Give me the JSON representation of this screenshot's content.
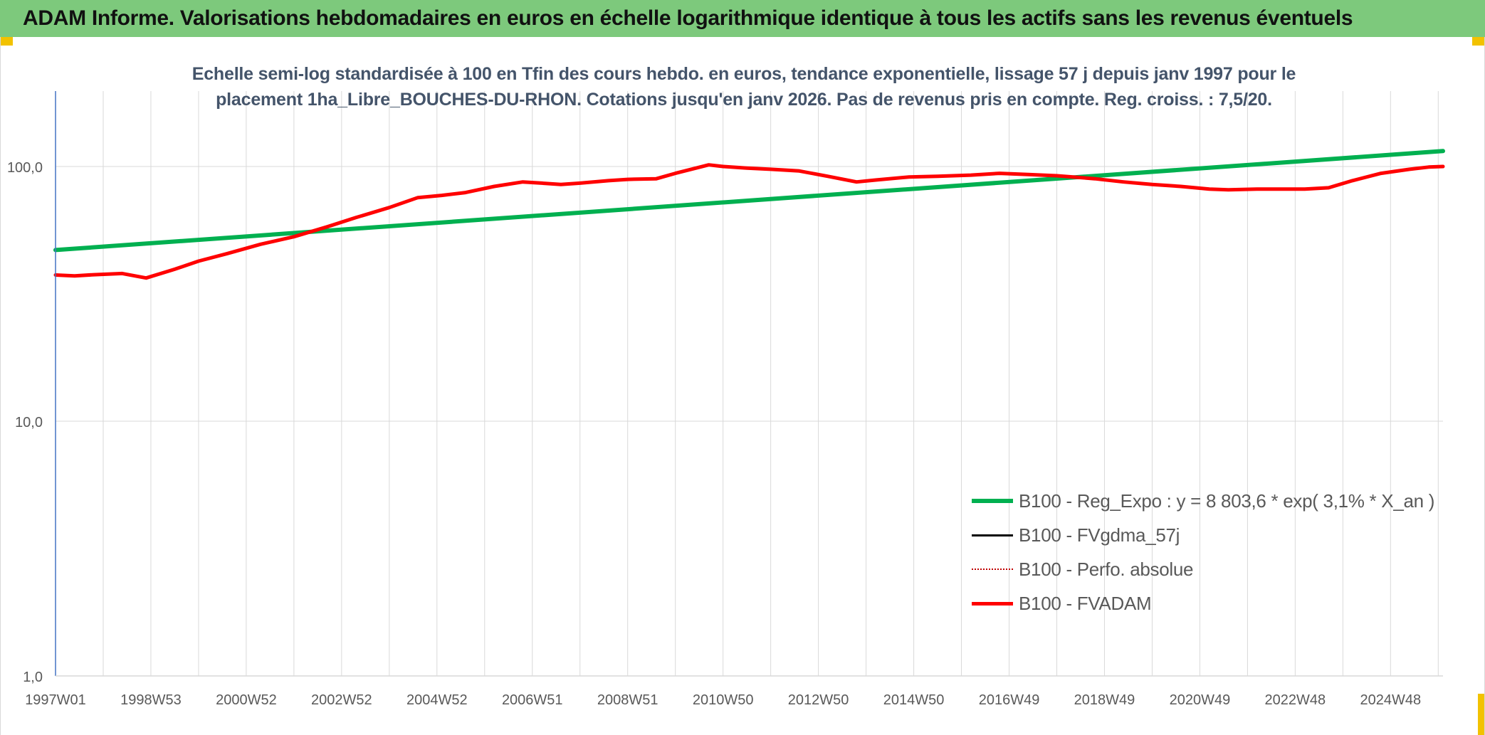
{
  "header": {
    "title": "ADAM Informe. Valorisations hebdomadaires en euros en échelle logarithmique identique à tous les actifs sans les revenus éventuels"
  },
  "colors": {
    "banner": "#7dc97c",
    "trend": "#00b050",
    "fvadam": "#ff0000",
    "gdma": "#000000",
    "perfo": "#c00000",
    "axis": "#4472c4",
    "grid": "#d9d9d9"
  },
  "chart_data": {
    "type": "line",
    "title": "Echelle semi-log standardisée à 100 en Tfin des cours hebdo. en euros, tendance exponentielle, lissage 57 j depuis janv 1997 pour le placement 1ha_Libre_BOUCHES-DU-RHON. Cotations jusqu'en janv 2026. Pas de revenus pris en compte. Reg. croiss. : 7,5/20.",
    "title_lines": [
      "Echelle semi-log standardisée à 100 en Tfin des cours hebdo. en euros, tendance exponentielle, lissage 57 j depuis janv 1997 pour le",
      "placement 1ha_Libre_BOUCHES-DU-RHON. Cotations jusqu'en janv 2026. Pas de revenus pris en compte. Reg. croiss. : 7,5/20."
    ],
    "y_scale": "log",
    "ylim": [
      1,
      200
    ],
    "y_ticks": [
      1,
      10,
      100
    ],
    "y_tick_labels": [
      "1,0",
      "10,0",
      "100,0"
    ],
    "xlim": [
      1997.0,
      2026.1
    ],
    "x_ticks": [
      1997.0,
      1999.0,
      2001.0,
      2003.0,
      2005.0,
      2007.0,
      2009.0,
      2011.0,
      2013.0,
      2015.0,
      2017.0,
      2019.0,
      2021.0,
      2023.0,
      2025.0
    ],
    "x_tick_labels": [
      "1997W01",
      "1998W53",
      "2000W52",
      "2002W52",
      "2004W52",
      "2006W51",
      "2008W51",
      "2010W50",
      "2012W50",
      "2014W50",
      "2016W49",
      "2018W49",
      "2020W49",
      "2022W48",
      "2024W48"
    ],
    "grid": true,
    "legend_position": "lower-right",
    "series": [
      {
        "name": "B100 - Reg_Expo : y = 8 803,6 * exp( 3,1% *  X_an )",
        "style": "solid",
        "color": "#00b050",
        "width": 6,
        "x": [
          1997.0,
          2026.1
        ],
        "values": [
          47.0,
          115.0
        ]
      },
      {
        "name": "B100 - FVgdma_57j",
        "style": "solid",
        "color": "#000000",
        "width": 3,
        "x": [],
        "values": []
      },
      {
        "name": "B100 - Perfo. absolue",
        "style": "dotted",
        "color": "#c00000",
        "width": 2,
        "x": [],
        "values": []
      },
      {
        "name": "B100 - FVADAM",
        "style": "solid",
        "color": "#ff0000",
        "width": 5,
        "x": [
          1997.0,
          1997.4,
          1997.8,
          1998.4,
          1998.9,
          1999.5,
          2000.0,
          2000.6,
          2001.3,
          2002.0,
          2002.7,
          2003.3,
          2004.0,
          2004.6,
          2005.1,
          2005.6,
          2006.2,
          2006.8,
          2007.2,
          2007.6,
          2008.0,
          2008.6,
          2009.0,
          2009.6,
          2010.0,
          2010.7,
          2011.0,
          2011.5,
          2012.0,
          2012.6,
          2013.2,
          2013.8,
          2014.2,
          2014.9,
          2015.5,
          2016.2,
          2016.8,
          2017.4,
          2018.0,
          2018.8,
          2019.4,
          2020.0,
          2020.6,
          2021.2,
          2021.6,
          2022.2,
          2022.8,
          2023.2,
          2023.7,
          2024.2,
          2024.8,
          2025.4,
          2025.8,
          2026.1
        ],
        "values": [
          37.5,
          37.2,
          37.6,
          38.0,
          36.5,
          39.5,
          42.5,
          45.5,
          49.5,
          53.0,
          58.0,
          63.0,
          69.0,
          75.5,
          77.0,
          79.0,
          83.5,
          87.0,
          86.0,
          85.0,
          86.0,
          88.0,
          89.0,
          89.5,
          94.0,
          101.5,
          100.0,
          98.5,
          97.5,
          96.0,
          91.5,
          87.0,
          88.5,
          91.0,
          91.5,
          92.5,
          94.0,
          93.0,
          92.0,
          89.5,
          87.0,
          85.0,
          83.5,
          81.5,
          81.0,
          81.5,
          81.5,
          81.5,
          82.5,
          88.0,
          94.0,
          97.5,
          99.5,
          100.0
        ]
      }
    ]
  }
}
